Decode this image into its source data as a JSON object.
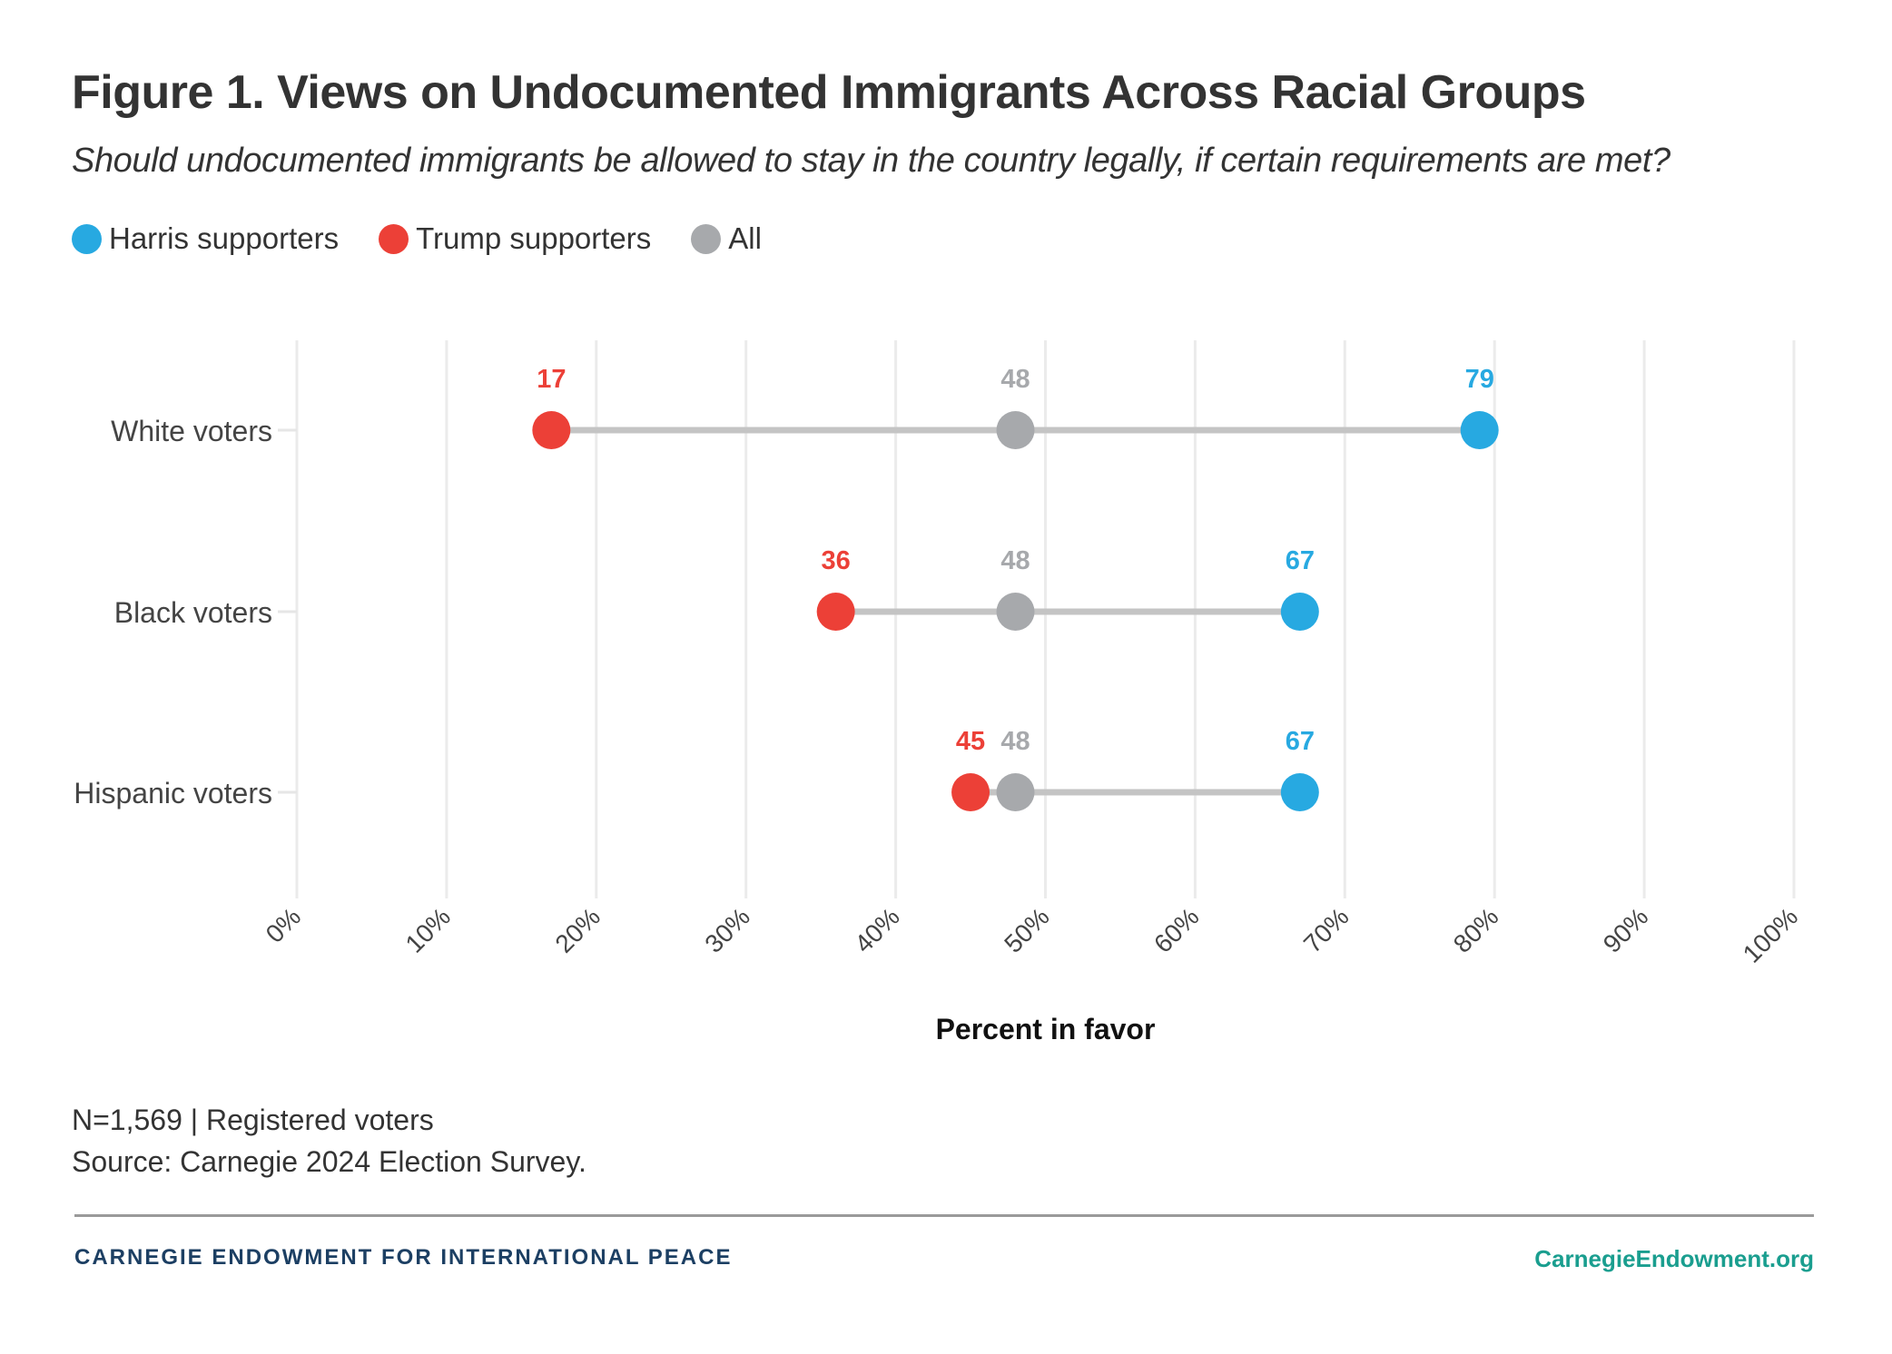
{
  "title": "Figure 1. Views on Undocumented Immigrants Across Racial Groups",
  "subtitle": "Should undocumented immigrants be allowed to stay in the country legally, if certain requirements are met?",
  "legend": [
    {
      "label": "Harris supporters",
      "color": "#27a9e1"
    },
    {
      "label": "Trump supporters",
      "color": "#ec4037"
    },
    {
      "label": "All",
      "color": "#a7a9ac"
    }
  ],
  "chart_data": {
    "type": "dumbbell",
    "categories": [
      "White voters",
      "Black voters",
      "Hispanic voters"
    ],
    "series": [
      {
        "name": "Harris supporters",
        "color": "#27a9e1",
        "values": [
          79,
          67,
          67
        ]
      },
      {
        "name": "Trump supporters",
        "color": "#ec4037",
        "values": [
          17,
          36,
          45
        ]
      },
      {
        "name": "All",
        "color": "#a7a9ac",
        "values": [
          48,
          48,
          48
        ]
      }
    ],
    "xlabel": "Percent in favor",
    "xlim": [
      0,
      100
    ],
    "xticks": [
      "0%",
      "10%",
      "20%",
      "30%",
      "40%",
      "50%",
      "60%",
      "70%",
      "80%",
      "90%",
      "100%"
    ],
    "grid": true,
    "legend_position": "top-left",
    "connector_color": "#c4c4c4"
  },
  "notes": [
    "N=1,569 | Registered voters",
    "Source: Carnegie 2024 Election Survey."
  ],
  "footer": {
    "org": "CARNEGIE ENDOWMENT FOR INTERNATIONAL PEACE",
    "url": "CarnegieEndowment.org"
  }
}
